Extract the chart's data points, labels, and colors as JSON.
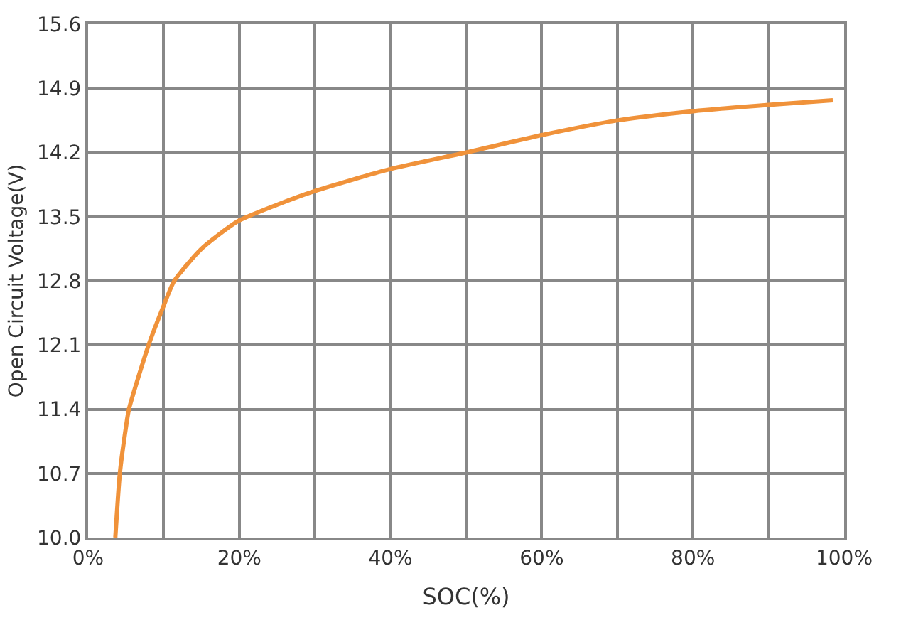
{
  "chart_data": {
    "type": "line",
    "xlabel": "SOC(%)",
    "ylabel": "Open Circuit Voltage(V)",
    "x": [
      3.6,
      4.2,
      5.0,
      5.4,
      8.0,
      10.0,
      11.4,
      15.0,
      19.8,
      25.0,
      30.0,
      40.0,
      50.0,
      60.0,
      70.0,
      80.0,
      90.0,
      98.5
    ],
    "series": [
      {
        "color": "#f0923a",
        "values": [
          10.0,
          10.7,
          11.2,
          11.4,
          12.1,
          12.53,
          12.8,
          13.15,
          13.45,
          13.63,
          13.78,
          14.02,
          14.2,
          14.39,
          14.55,
          14.65,
          14.72,
          14.77
        ]
      }
    ],
    "xlim": [
      0,
      100
    ],
    "xticks": [
      {
        "value": 0,
        "label": "0%"
      },
      {
        "value": 10,
        "label": null
      },
      {
        "value": 20,
        "label": "20%"
      },
      {
        "value": 30,
        "label": null
      },
      {
        "value": 40,
        "label": "40%"
      },
      {
        "value": 50,
        "label": null
      },
      {
        "value": 60,
        "label": "60%"
      },
      {
        "value": 70,
        "label": null
      },
      {
        "value": 80,
        "label": "80%"
      },
      {
        "value": 90,
        "label": null
      },
      {
        "value": 100,
        "label": "100%"
      }
    ],
    "ylim": [
      10.0,
      15.6
    ],
    "yticks": [
      {
        "value": 10.0,
        "label": "10.0"
      },
      10.7,
      11.4,
      12.1,
      12.8,
      13.5,
      14.2,
      14.9,
      15.6
    ],
    "grid": true,
    "marker": "none",
    "line_style": "solid"
  }
}
